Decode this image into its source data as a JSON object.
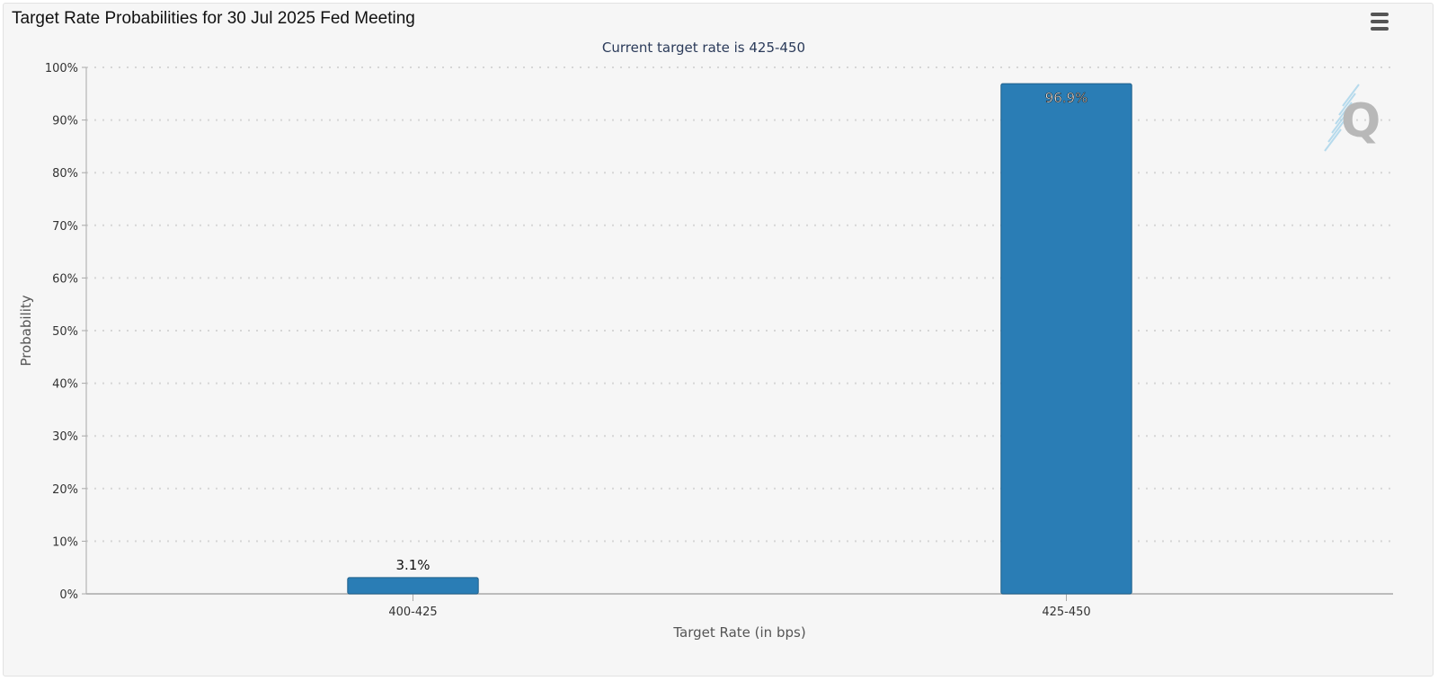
{
  "header": {
    "title": "Target Rate Probabilities for 30 Jul 2025 Fed Meeting",
    "menu_icon": "hamburger-menu-icon"
  },
  "colors": {
    "bar": "#2a7db5",
    "background": "#f6f6f6",
    "gridline": "#d6d6d6",
    "axis": "#a8a8a8",
    "subtitle": "#2b3b5a"
  },
  "watermark": {
    "icon": "q-logo-icon"
  },
  "chart_data": {
    "type": "bar",
    "title": "Target Rate Probabilities for 30 Jul 2025 Fed Meeting",
    "subtitle": "Current target rate is 425-450",
    "xlabel": "Target Rate (in bps)",
    "ylabel": "Probability",
    "categories": [
      "400-425",
      "425-450"
    ],
    "values": [
      3.1,
      96.9
    ],
    "data_labels": [
      "3.1%",
      "96.9%"
    ],
    "ylim": [
      0,
      100
    ],
    "yticks": [
      0,
      10,
      20,
      30,
      40,
      50,
      60,
      70,
      80,
      90,
      100
    ],
    "ytick_labels": [
      "0%",
      "10%",
      "20%",
      "30%",
      "40%",
      "50%",
      "60%",
      "70%",
      "80%",
      "90%",
      "100%"
    ],
    "grid": true,
    "legend": false
  }
}
